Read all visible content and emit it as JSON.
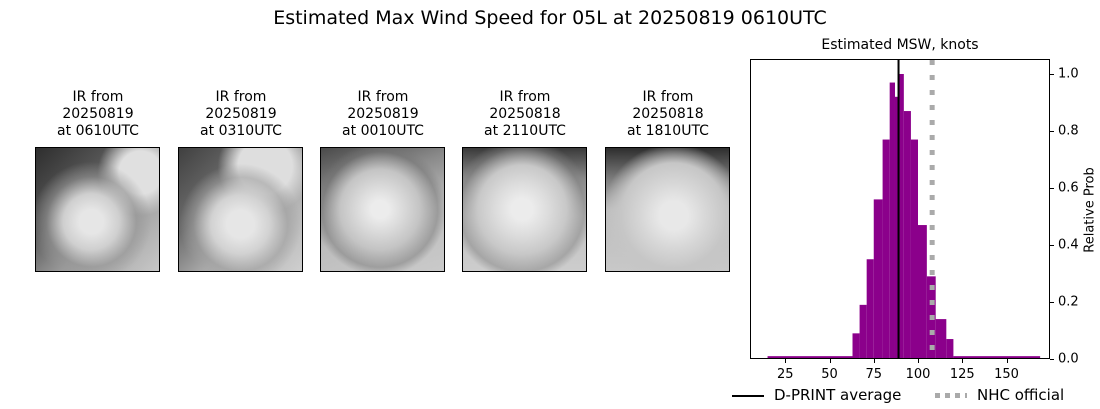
{
  "figure": {
    "title": "Estimated Max Wind Speed for 05L at 20250819 0610UTC"
  },
  "ir_panels": [
    {
      "line1": "IR from",
      "line2": "20250819",
      "line3": "at 0610UTC"
    },
    {
      "line1": "IR from",
      "line2": "20250819",
      "line3": "at 0310UTC"
    },
    {
      "line1": "IR from",
      "line2": "20250819",
      "line3": "at 0010UTC"
    },
    {
      "line1": "IR from",
      "line2": "20250818",
      "line3": "at 2110UTC"
    },
    {
      "line1": "IR from",
      "line2": "20250818",
      "line3": "at 1810UTC"
    }
  ],
  "chart_data": {
    "type": "bar",
    "title": "Estimated MSW, knots",
    "xlabel": "",
    "ylabel": "Relative Prob",
    "xlim": [
      5,
      175
    ],
    "ylim": [
      0,
      1.05
    ],
    "xticks": [
      25,
      50,
      75,
      100,
      125,
      150
    ],
    "yticks": [
      "0.0",
      "0.2",
      "0.4",
      "0.6",
      "0.8",
      "1.0"
    ],
    "bar_color": "#8b008b",
    "bins": [
      {
        "x0": 15,
        "x1": 63,
        "value": 0.01
      },
      {
        "x0": 63,
        "x1": 67,
        "value": 0.09
      },
      {
        "x0": 67,
        "x1": 71,
        "value": 0.19
      },
      {
        "x0": 71,
        "x1": 75,
        "value": 0.35
      },
      {
        "x0": 75,
        "x1": 80,
        "value": 0.56
      },
      {
        "x0": 80,
        "x1": 84,
        "value": 0.77
      },
      {
        "x0": 84,
        "x1": 87,
        "value": 0.97
      },
      {
        "x0": 87,
        "x1": 89,
        "value": 0.92
      },
      {
        "x0": 89,
        "x1": 92,
        "value": 1.0
      },
      {
        "x0": 92,
        "x1": 96,
        "value": 0.87
      },
      {
        "x0": 96,
        "x1": 100,
        "value": 0.77
      },
      {
        "x0": 100,
        "x1": 105,
        "value": 0.47
      },
      {
        "x0": 105,
        "x1": 110,
        "value": 0.29
      },
      {
        "x0": 110,
        "x1": 116,
        "value": 0.14
      },
      {
        "x0": 116,
        "x1": 120,
        "value": 0.07
      },
      {
        "x0": 120,
        "x1": 169,
        "value": 0.01
      }
    ],
    "lines": [
      {
        "name": "D-PRINT average",
        "x": 89,
        "style": "solid",
        "color": "#000000"
      },
      {
        "name": "NHC official",
        "x": 108,
        "style": "dotted",
        "color": "#aaaaaa"
      }
    ],
    "legend": [
      "D-PRINT average",
      "NHC official"
    ],
    "legend_position": "bottom",
    "grid": false
  }
}
